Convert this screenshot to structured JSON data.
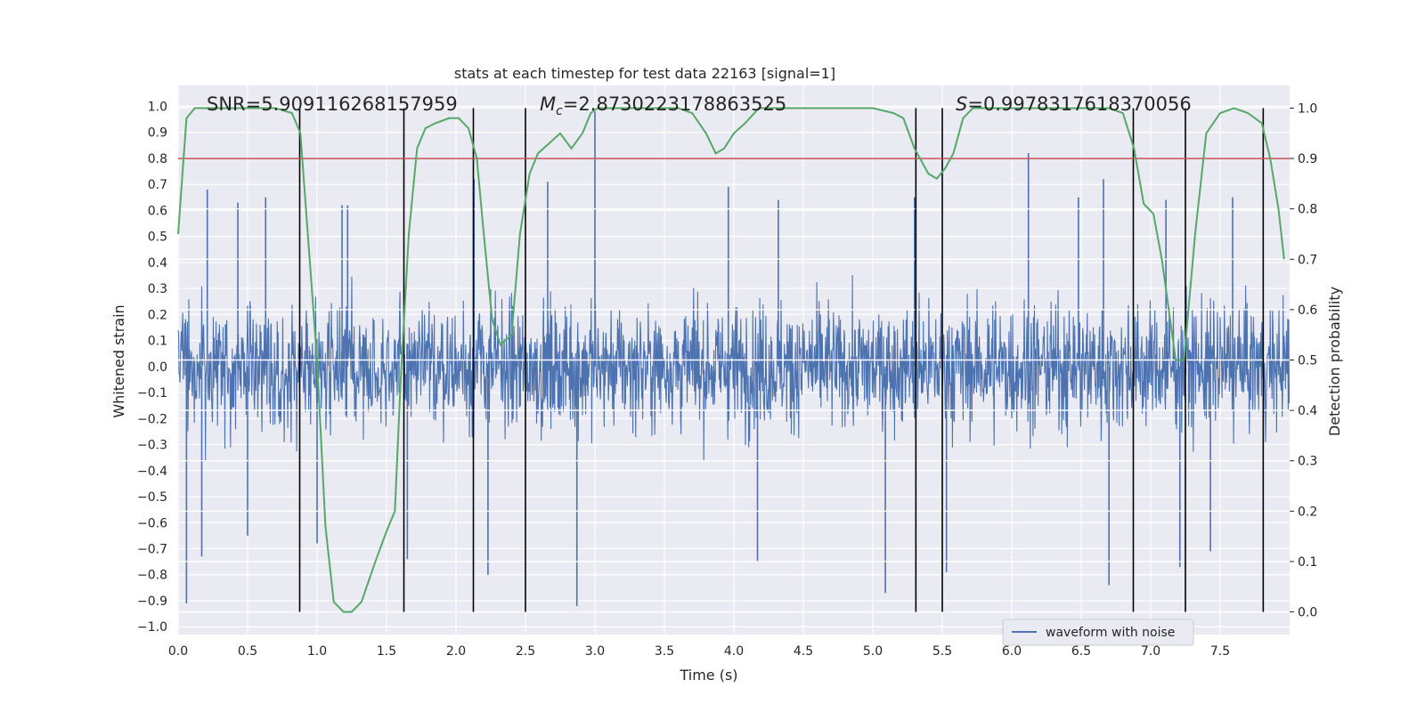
{
  "chart_data": {
    "type": "line",
    "title": "stats at each timestep for test data 22163 [signal=1]",
    "xlabel": "Time (s)",
    "ylabel": "Whitened strain",
    "y2label": "Detection probability",
    "xlim": [
      0.0,
      8.0
    ],
    "ylim": [
      -1.03,
      1.08
    ],
    "y2lim": [
      -0.045,
      1.045
    ],
    "xticks": [
      "0.0",
      "0.5",
      "1.0",
      "1.5",
      "2.0",
      "2.5",
      "3.0",
      "3.5",
      "4.0",
      "4.5",
      "5.0",
      "5.5",
      "6.0",
      "6.5",
      "7.0",
      "7.5"
    ],
    "yticks": [
      "1.0",
      "0.9",
      "0.8",
      "0.7",
      "0.6",
      "0.5",
      "0.4",
      "0.3",
      "0.2",
      "0.1",
      "0.0",
      "−0.1",
      "−0.2",
      "−0.3",
      "−0.4",
      "−0.5",
      "−0.6",
      "−0.7",
      "−0.8",
      "−0.9",
      "−1.0"
    ],
    "y2ticks": [
      "1.0",
      "0.9",
      "0.8",
      "0.7",
      "0.6",
      "0.5",
      "0.4",
      "0.3",
      "0.2",
      "0.1",
      "0.0"
    ],
    "annotations": {
      "snr": "SNR=5.909116268157959",
      "mc_symbol": "M",
      "mc_sub": "c",
      "mc_value": "=2.8730223178863525",
      "s_symbol": "S",
      "s_value": "=0.9978317618370056"
    },
    "threshold": {
      "probability": 0.9,
      "color": "#c44e52"
    },
    "vertical_markers": [
      0.875,
      1.625,
      2.125,
      2.5,
      5.31,
      5.5,
      6.875,
      7.25,
      7.81
    ],
    "waveform": {
      "name": "waveform with noise",
      "color": "#4c72b0",
      "core_amplitude": 0.42,
      "spikes": [
        [
          0.21,
          0.68
        ],
        [
          0.43,
          0.63
        ],
        [
          0.63,
          0.65
        ],
        [
          1.18,
          0.62
        ],
        [
          1.22,
          0.62
        ],
        [
          2.13,
          0.72
        ],
        [
          2.66,
          0.71
        ],
        [
          3.0,
          0.98
        ],
        [
          3.96,
          0.69
        ],
        [
          4.32,
          0.64
        ],
        [
          5.3,
          0.65
        ],
        [
          6.12,
          0.82
        ],
        [
          6.48,
          0.65
        ],
        [
          6.66,
          0.72
        ],
        [
          7.11,
          0.64
        ],
        [
          7.59,
          0.65
        ],
        [
          0.06,
          -0.91
        ],
        [
          0.17,
          -0.73
        ],
        [
          0.5,
          -0.65
        ],
        [
          1.0,
          -0.68
        ],
        [
          1.65,
          -0.74
        ],
        [
          2.23,
          -0.8
        ],
        [
          2.87,
          -0.92
        ],
        [
          4.17,
          -0.75
        ],
        [
          5.09,
          -0.87
        ],
        [
          5.53,
          -0.79
        ],
        [
          6.7,
          -0.84
        ],
        [
          7.21,
          -0.77
        ],
        [
          7.43,
          -0.71
        ]
      ]
    },
    "probability": {
      "color": "#55a868",
      "x": [
        0.0,
        0.06,
        0.12,
        0.2,
        0.3,
        0.5,
        0.7,
        0.82,
        0.88,
        1.0,
        1.06,
        1.12,
        1.19,
        1.25,
        1.32,
        1.42,
        1.5,
        1.56,
        1.6,
        1.66,
        1.72,
        1.78,
        1.85,
        1.95,
        2.02,
        2.09,
        2.15,
        2.2,
        2.26,
        2.32,
        2.4,
        2.46,
        2.53,
        2.59,
        2.67,
        2.75,
        2.83,
        2.91,
        2.97,
        3.02,
        3.1,
        3.2,
        3.4,
        3.6,
        3.7,
        3.8,
        3.87,
        3.93,
        4.0,
        4.08,
        4.18,
        4.28,
        4.4,
        4.6,
        4.8,
        5.0,
        5.15,
        5.22,
        5.3,
        5.4,
        5.46,
        5.52,
        5.58,
        5.65,
        5.72,
        5.85,
        6.0,
        6.2,
        6.4,
        6.6,
        6.7,
        6.8,
        6.88,
        6.95,
        7.02,
        7.08,
        7.13,
        7.18,
        7.24,
        7.32,
        7.4,
        7.5,
        7.6,
        7.7,
        7.8,
        7.86,
        7.92,
        7.96
      ],
      "y": [
        0.75,
        0.98,
        1.0,
        1.0,
        1.0,
        1.0,
        1.0,
        0.99,
        0.95,
        0.5,
        0.17,
        0.02,
        0.0,
        0.0,
        0.02,
        0.1,
        0.16,
        0.2,
        0.45,
        0.75,
        0.92,
        0.96,
        0.97,
        0.98,
        0.98,
        0.96,
        0.9,
        0.75,
        0.58,
        0.53,
        0.55,
        0.75,
        0.87,
        0.91,
        0.93,
        0.95,
        0.92,
        0.95,
        0.99,
        1.0,
        1.0,
        1.0,
        1.0,
        1.0,
        0.99,
        0.95,
        0.91,
        0.92,
        0.95,
        0.97,
        1.0,
        1.0,
        1.0,
        1.0,
        1.0,
        1.0,
        0.99,
        0.98,
        0.92,
        0.87,
        0.86,
        0.88,
        0.91,
        0.98,
        1.0,
        1.0,
        1.0,
        1.0,
        1.0,
        1.0,
        1.0,
        0.99,
        0.92,
        0.81,
        0.79,
        0.7,
        0.6,
        0.5,
        0.5,
        0.75,
        0.95,
        0.99,
        1.0,
        0.99,
        0.97,
        0.9,
        0.8,
        0.7
      ]
    },
    "legend": {
      "label": "waveform with noise",
      "placement": "lower-right"
    }
  }
}
